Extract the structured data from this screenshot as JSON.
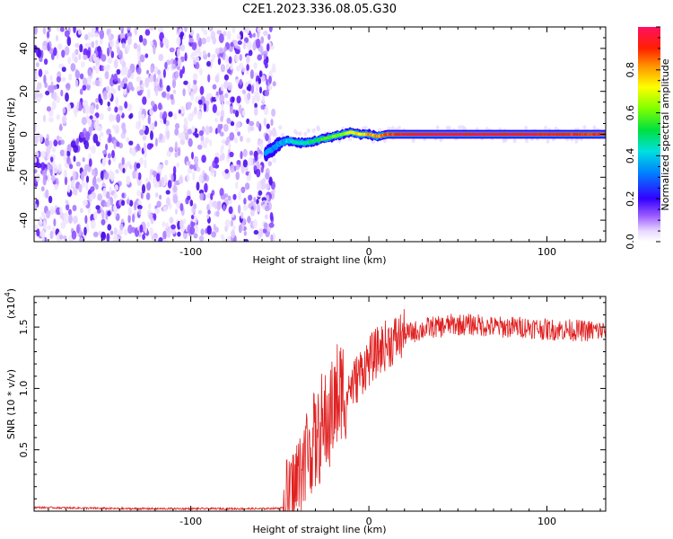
{
  "title": "C2E1.2023.336.08.05.G30",
  "colorbar": {
    "label": "Normalized spectral amplitude",
    "ticks": [
      "0.0",
      "0.2",
      "0.4",
      "0.6",
      "0.8"
    ],
    "tick_values": [
      0.0,
      0.2,
      0.4,
      0.6,
      0.8
    ],
    "range": [
      0,
      1
    ]
  },
  "colors": {
    "snr_line": "#e02020",
    "spectro_noise": "#7a3cff",
    "frame": "#000000"
  },
  "chart_data": [
    {
      "type": "heatmap",
      "xlabel": "Height of straight line (km)",
      "ylabel": "Frequency (Hz)",
      "xlim": [
        -188,
        133
      ],
      "ylim": [
        -50,
        50
      ],
      "xticks": [
        -100,
        0,
        100
      ],
      "xtick_labels": [
        "-100",
        "0",
        "100"
      ],
      "yticks": [
        -40,
        -20,
        0,
        20,
        40
      ],
      "ytick_labels": [
        "-40",
        "-20",
        "0",
        "20",
        "40"
      ],
      "noise_region_x": [
        -188,
        -53
      ],
      "signal_track": {
        "x": [
          -58,
          -54,
          -50,
          -45,
          -40,
          -35,
          -30,
          -25,
          -20,
          -15,
          -10,
          -5,
          0,
          5,
          10,
          20,
          40,
          80,
          133
        ],
        "freq": [
          -9,
          -7,
          -4,
          -3,
          -4,
          -4,
          -3,
          -2,
          -1,
          0,
          1,
          0,
          0,
          -1,
          0,
          0,
          0,
          0,
          0
        ],
        "amplitude": [
          0.25,
          0.3,
          0.35,
          0.4,
          0.45,
          0.45,
          0.5,
          0.55,
          0.6,
          0.6,
          0.7,
          0.75,
          0.8,
          0.8,
          0.85,
          0.95,
          0.95,
          0.95,
          0.9
        ]
      }
    },
    {
      "type": "line",
      "xlabel": "Height of straight line (km)",
      "ylabel": "SNR (10 * v/v)",
      "y_multiplier": "(x10",
      "y_multiplier_exp": "4",
      "xlim": [
        -188,
        133
      ],
      "ylim": [
        0,
        1.75
      ],
      "xticks": [
        -100,
        0,
        100
      ],
      "xtick_labels": [
        "-100",
        "0",
        "100"
      ],
      "yticks": [
        0.5,
        1.0,
        1.5
      ],
      "ytick_labels": [
        "0.5",
        "1.0",
        "1.5"
      ],
      "series": [
        {
          "x": [
            -188,
            -160,
            -140,
            -120,
            -100,
            -80,
            -60,
            -48,
            -44,
            -40,
            -36,
            -32,
            -28,
            -24,
            -20,
            -16,
            -12,
            -8,
            -4,
            0,
            5,
            10,
            15,
            20,
            25,
            30,
            35,
            40,
            45,
            50,
            60,
            70,
            80,
            90,
            100,
            110,
            120,
            133
          ],
          "values": [
            0.03,
            0.025,
            0.02,
            0.02,
            0.02,
            0.02,
            0.02,
            0.025,
            0.1,
            0.25,
            0.45,
            0.55,
            0.6,
            0.7,
            0.85,
            0.95,
            1.0,
            1.05,
            1.15,
            1.22,
            1.3,
            1.36,
            1.4,
            1.44,
            1.46,
            1.48,
            1.5,
            1.5,
            1.52,
            1.52,
            1.52,
            1.5,
            1.5,
            1.5,
            1.48,
            1.48,
            1.47,
            1.47
          ]
        }
      ]
    }
  ]
}
